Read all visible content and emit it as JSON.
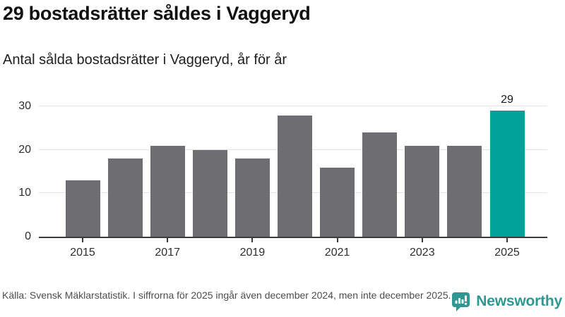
{
  "chart_data": {
    "type": "bar",
    "title": "29 bostadsrätter såldes i Vaggeryd",
    "subtitle": "Antal sålda bostadsrätter i Vaggeryd, år för år",
    "categories": [
      "2015",
      "2016",
      "2017",
      "2018",
      "2019",
      "2020",
      "2021",
      "2022",
      "2023",
      "2024",
      "2025"
    ],
    "values": [
      13,
      18,
      21,
      20,
      18,
      28,
      16,
      24,
      21,
      21,
      29
    ],
    "highlight_index": 10,
    "highlight_label": "29",
    "xtick_labels": [
      "2015",
      "2017",
      "2019",
      "2021",
      "2023",
      "2025"
    ],
    "yticks": [
      0,
      10,
      20,
      30
    ],
    "ylim": [
      0,
      32
    ],
    "xlabel": "",
    "ylabel": "",
    "grid": "horizontal",
    "legend": "none",
    "colors": {
      "bar": "#6e6e72",
      "highlight": "#00a29a",
      "gridline": "#e4e4e6",
      "axis": "#3a3a3a",
      "tick_text": "#2e2e2e"
    }
  },
  "footer": {
    "source": "Källa: Svensk Mäklarstatistik. I siffrorna för 2025 ingår även december 2024, men inte december 2025.",
    "brand": "Newsworthy",
    "brand_color": "#2f9892"
  }
}
